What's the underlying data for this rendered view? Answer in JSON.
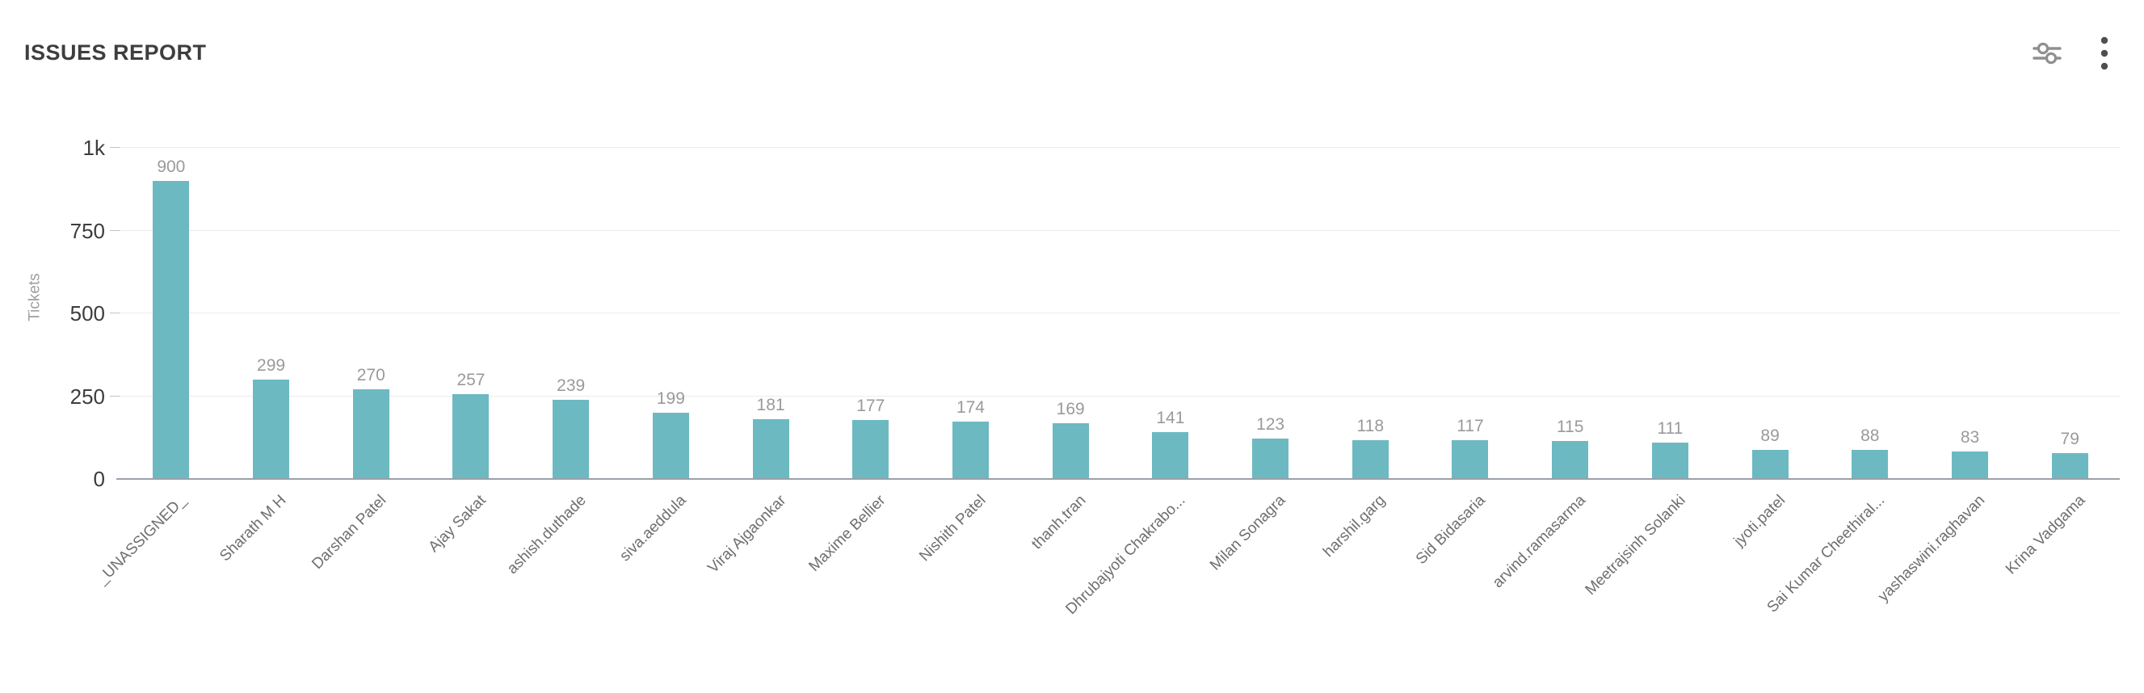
{
  "header": {
    "title": "ISSUES REPORT"
  },
  "toolbar": {
    "filter_icon": "sliders-filter-icon",
    "menu_icon": "kebab-menu-icon"
  },
  "chart_data": {
    "type": "bar",
    "title": "ISSUES REPORT",
    "xlabel": "",
    "ylabel": "Tickets",
    "categories": [
      "_UNASSIGNED_",
      "Sharath M H",
      "Darshan Patel",
      "Ajay Sakat",
      "ashish.duthade",
      "siva.aeddula",
      "Viraj Ajgaonkar",
      "Maxime Bellier",
      "Nishith Patel",
      "thanh.tran",
      "Dhrubajyoti Chakrabo...",
      "Milan Sonagra",
      "harshil.garg",
      "Sid Bidasaria",
      "arvind.ramasarma",
      "Meetrajsinh Solanki",
      "jyoti.patel",
      "Sai Kumar Cheethiral...",
      "yashaswini.raghavan",
      "Krina Vadgama"
    ],
    "values": [
      900,
      299,
      270,
      257,
      239,
      199,
      181,
      177,
      174,
      169,
      141,
      123,
      118,
      117,
      115,
      111,
      89,
      88,
      83,
      79
    ],
    "ylim": [
      0,
      1000
    ],
    "y_ticks": [
      {
        "value": 0,
        "label": "0"
      },
      {
        "value": 250,
        "label": "250"
      },
      {
        "value": 500,
        "label": "500"
      },
      {
        "value": 750,
        "label": "750"
      },
      {
        "value": 1000,
        "label": "1k"
      }
    ],
    "grid": true,
    "legend_position": "none",
    "x_label_rotation_deg": -45,
    "value_labels_shown": true
  },
  "colors": {
    "bar": "#6cb9c2",
    "axis_line": "#9ba1aa",
    "gridline": "#ececec",
    "value_label": "#9a9a9a",
    "x_tick_label": "#6f6f6f",
    "y_tick_label": "#3d3d3d",
    "axis_title": "#9e9e9e",
    "title": "#3e3e3e",
    "icon": "#8f8f8f",
    "menu_icon": "#4f4f4f"
  }
}
